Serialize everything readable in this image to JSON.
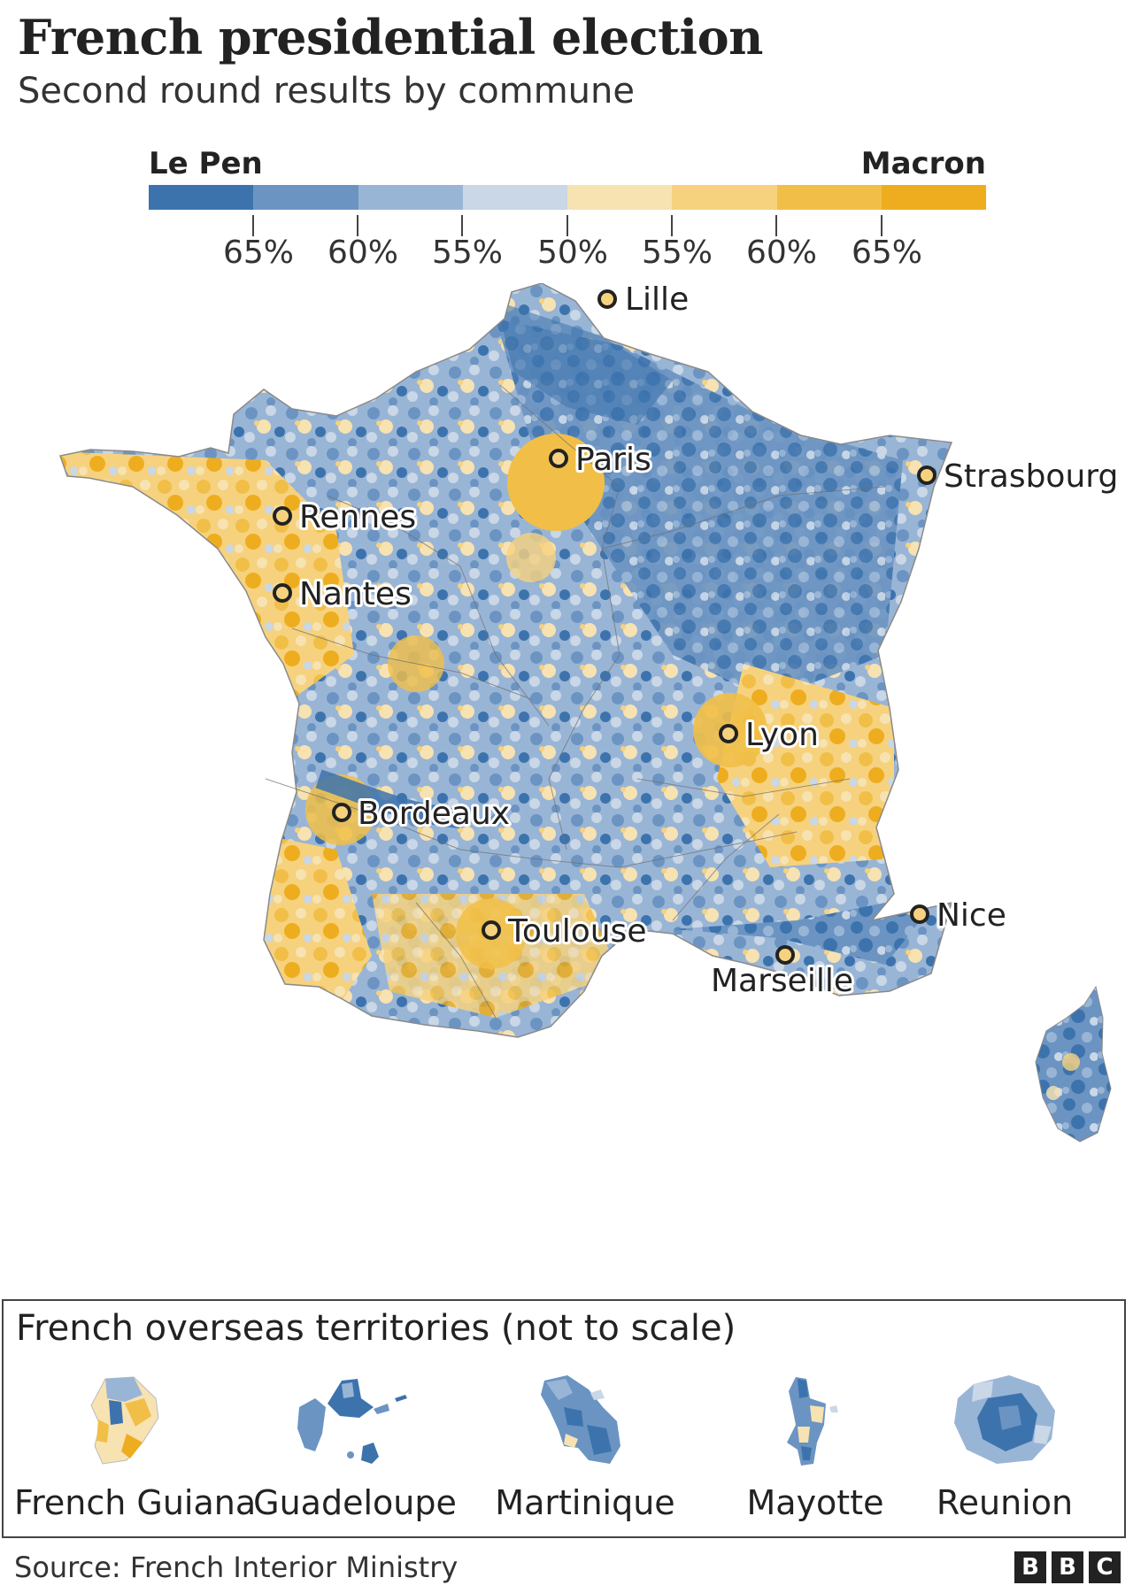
{
  "header": {
    "title": "French presidential election",
    "subtitle": "Second round results by commune"
  },
  "legend": {
    "left_label": "Le Pen",
    "right_label": "Macron",
    "bins": [
      "#3d73ad",
      "#6b94c2",
      "#99b5d6",
      "#c9d7e7",
      "#f7e2b2",
      "#f6d27f",
      "#f1bf47",
      "#eead1f"
    ],
    "ticks": [
      "65%",
      "60%",
      "55%",
      "50%",
      "55%",
      "60%",
      "65%"
    ]
  },
  "map": {
    "colors": {
      "lepen_strong": "#3d73ad",
      "lepen_mid": "#6b94c2",
      "lepen_light": "#99b5d6",
      "neutral_blue": "#c9d7e7",
      "neutral_yellow": "#f7e2b2",
      "macron_light": "#f6d27f",
      "macron_mid": "#f1bf47",
      "macron_strong": "#eead1f"
    },
    "cities": {
      "lille": "Lille",
      "paris": "Paris",
      "strasbourg": "Strasbourg",
      "rennes": "Rennes",
      "nantes": "Nantes",
      "lyon": "Lyon",
      "bordeaux": "Bordeaux",
      "toulouse": "Toulouse",
      "nice": "Nice",
      "marseille": "Marseille"
    }
  },
  "overseas": {
    "title": "French overseas territories (not to scale)",
    "territories": [
      "French Guiana",
      "Guadeloupe",
      "Martinique",
      "Mayotte",
      "Reunion"
    ]
  },
  "footer": {
    "source": "Source: French Interior Ministry",
    "logo_letters": [
      "B",
      "B",
      "C"
    ]
  }
}
